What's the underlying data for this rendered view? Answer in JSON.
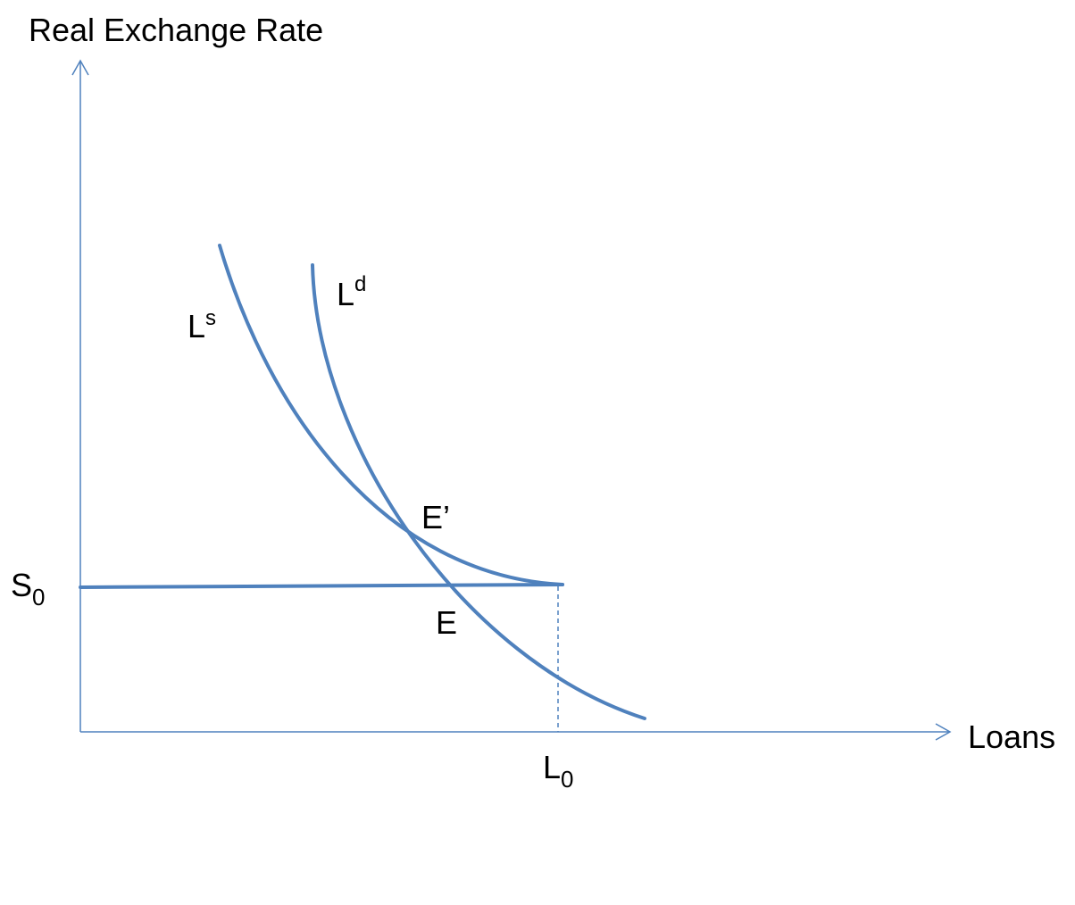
{
  "axes": {
    "y_label": "Real Exchange Rate",
    "x_label": "Loans"
  },
  "curves": {
    "supply": {
      "base": "L",
      "sup": "s"
    },
    "demand": {
      "base": "L",
      "sup": "d"
    }
  },
  "points": {
    "e_prime": "E’",
    "e": "E"
  },
  "ticks": {
    "s0": {
      "base": "S",
      "sub": "0"
    },
    "l0": {
      "base": "L",
      "sub": "0"
    }
  },
  "colors": {
    "curve": "#4f81bd",
    "text": "#000000"
  }
}
